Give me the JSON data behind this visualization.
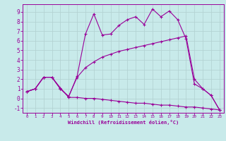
{
  "xlabel": "Windchill (Refroidissement éolien,°C)",
  "background_color": "#c8eaea",
  "grid_color": "#b0d0d0",
  "line_color": "#990099",
  "xlim": [
    -0.5,
    23.5
  ],
  "ylim": [
    -1.5,
    9.8
  ],
  "xticks": [
    0,
    1,
    2,
    3,
    4,
    5,
    6,
    7,
    8,
    9,
    10,
    11,
    12,
    13,
    14,
    15,
    16,
    17,
    18,
    19,
    20,
    21,
    22,
    23
  ],
  "yticks": [
    -1,
    0,
    1,
    2,
    3,
    4,
    5,
    6,
    7,
    8,
    9
  ],
  "line1_x": [
    0,
    1,
    2,
    3,
    4,
    5,
    6,
    7,
    8,
    9,
    10,
    11,
    12,
    13,
    14,
    15,
    16,
    17,
    18,
    19,
    20,
    21,
    22,
    23
  ],
  "line1_y": [
    0.7,
    1.0,
    2.2,
    2.2,
    1.0,
    0.2,
    2.3,
    6.7,
    8.8,
    6.6,
    6.7,
    7.6,
    8.2,
    8.5,
    7.7,
    9.3,
    8.5,
    9.1,
    8.2,
    6.2,
    1.5,
    1.0,
    0.3,
    -1.2
  ],
  "line2_x": [
    0,
    1,
    2,
    3,
    4,
    5,
    6,
    7,
    8,
    9,
    10,
    11,
    12,
    13,
    14,
    15,
    16,
    17,
    18,
    19,
    20,
    21,
    22,
    23
  ],
  "line2_y": [
    0.7,
    1.0,
    2.2,
    2.2,
    1.0,
    0.2,
    2.2,
    3.2,
    3.8,
    4.3,
    4.6,
    4.9,
    5.1,
    5.3,
    5.5,
    5.7,
    5.9,
    6.1,
    6.3,
    6.5,
    2.0,
    1.0,
    0.3,
    -1.2
  ],
  "line3_x": [
    0,
    1,
    2,
    3,
    4,
    5,
    6,
    7,
    8,
    9,
    10,
    11,
    12,
    13,
    14,
    15,
    16,
    17,
    18,
    19,
    20,
    21,
    22,
    23
  ],
  "line3_y": [
    0.7,
    1.0,
    2.2,
    2.2,
    1.1,
    0.1,
    0.1,
    0.0,
    0.0,
    -0.1,
    -0.2,
    -0.3,
    -0.4,
    -0.5,
    -0.5,
    -0.6,
    -0.7,
    -0.7,
    -0.8,
    -0.9,
    -0.9,
    -1.0,
    -1.1,
    -1.2
  ]
}
